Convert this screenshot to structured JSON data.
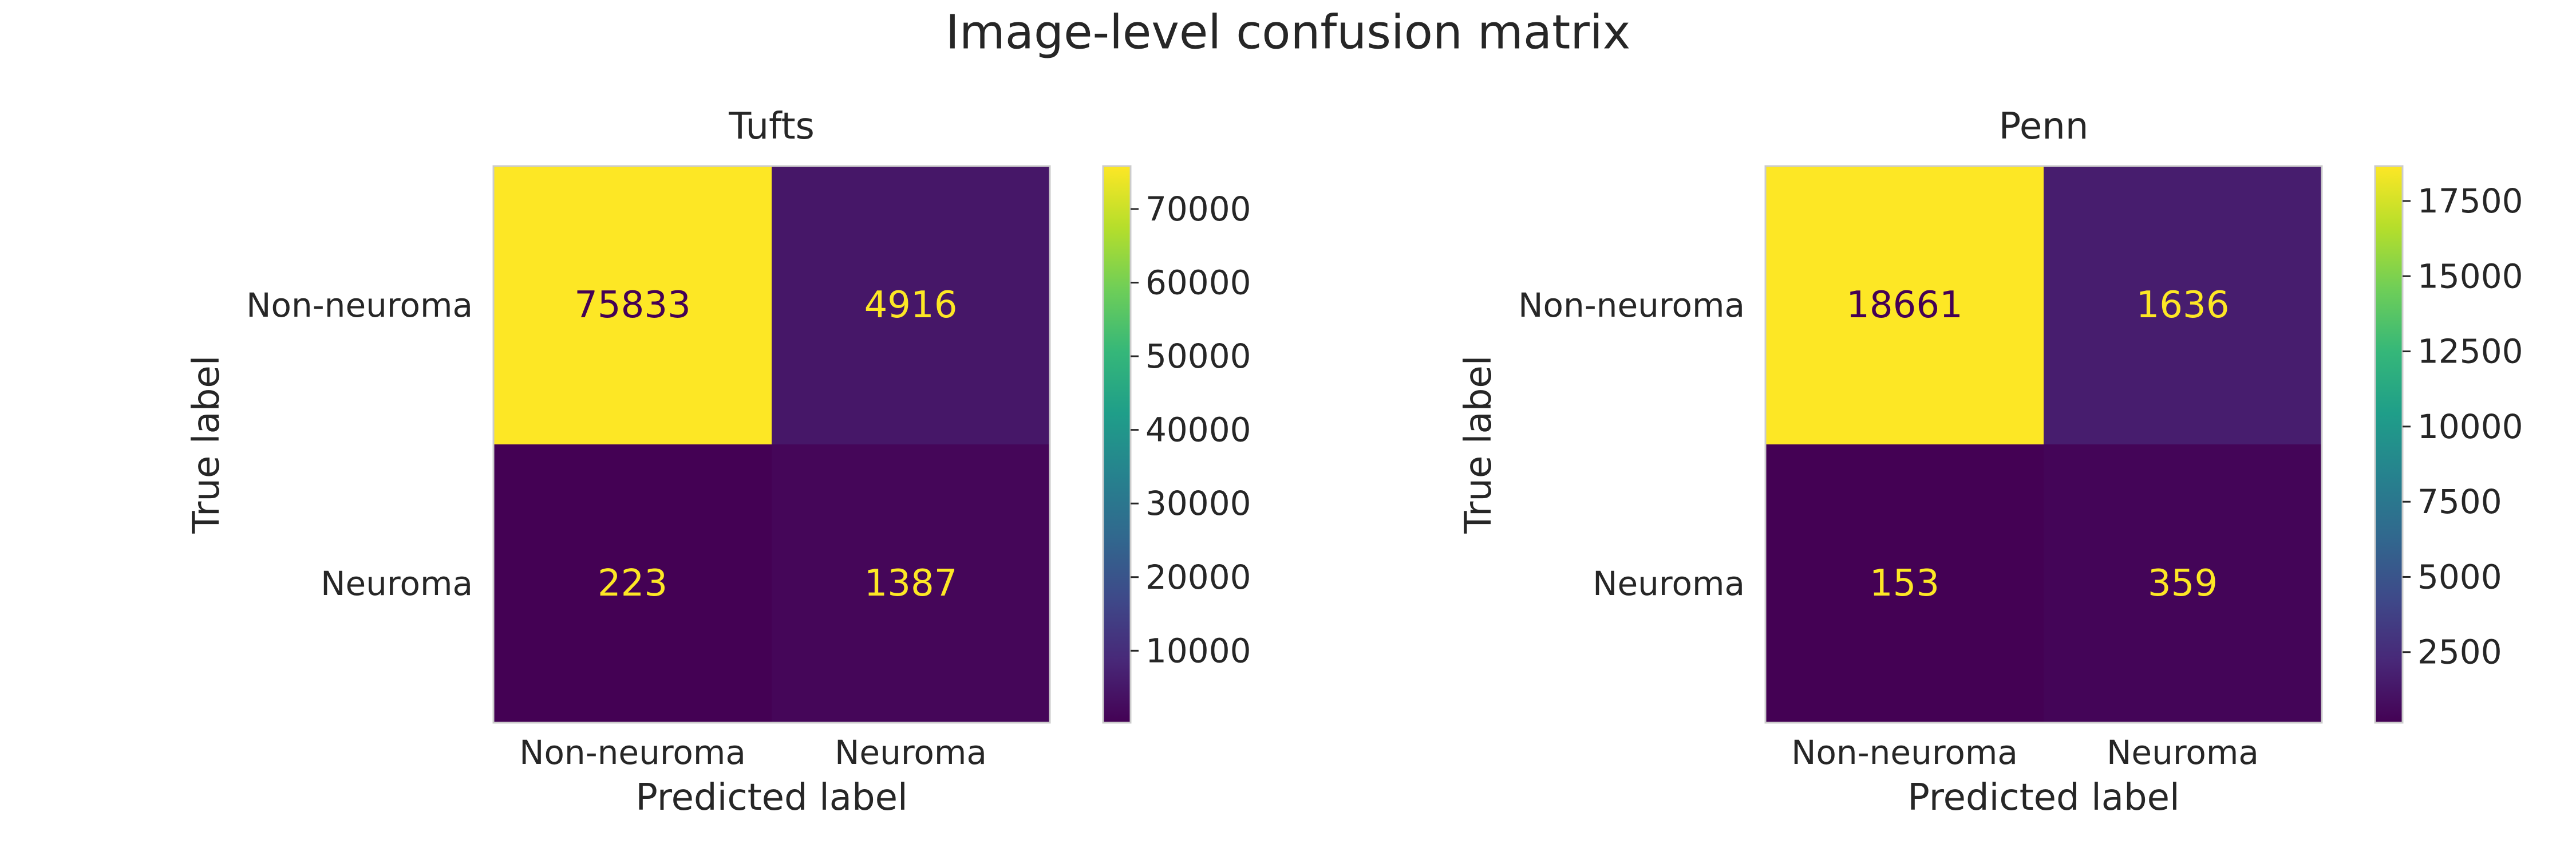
{
  "figure": {
    "title": "Image-level confusion matrix"
  },
  "colors": {
    "cell_text_on_dark": "#fde725",
    "cell_text_on_light": "#440154",
    "frame": "#cccccc",
    "text": "#262626"
  },
  "chart_data": [
    {
      "type": "heatmap",
      "title": "Tufts",
      "xlabel": "Predicted label",
      "ylabel": "True label",
      "x_categories": [
        "Non-neuroma",
        "Neuroma"
      ],
      "y_categories": [
        "Non-neuroma",
        "Neuroma"
      ],
      "values": [
        [
          75833,
          4916
        ],
        [
          223,
          1387
        ]
      ],
      "colormap": "viridis",
      "vmin": 223,
      "vmax": 75833,
      "colorbar_ticks": [
        10000,
        20000,
        30000,
        40000,
        50000,
        60000,
        70000
      ],
      "colorbar_labels": [
        "10000",
        "20000",
        "30000",
        "40000",
        "50000",
        "60000",
        "70000"
      ],
      "grid": false
    },
    {
      "type": "heatmap",
      "title": "Penn",
      "xlabel": "Predicted label",
      "ylabel": "True label",
      "x_categories": [
        "Non-neuroma",
        "Neuroma"
      ],
      "y_categories": [
        "Non-neuroma",
        "Neuroma"
      ],
      "values": [
        [
          18661,
          1636
        ],
        [
          153,
          359
        ]
      ],
      "colormap": "viridis",
      "vmin": 153,
      "vmax": 18661,
      "colorbar_ticks": [
        2500,
        5000,
        7500,
        10000,
        12500,
        15000,
        17500
      ],
      "colorbar_labels": [
        "2500",
        "5000",
        "7500",
        "10000",
        "12500",
        "15000",
        "17500"
      ],
      "grid": false
    }
  ]
}
